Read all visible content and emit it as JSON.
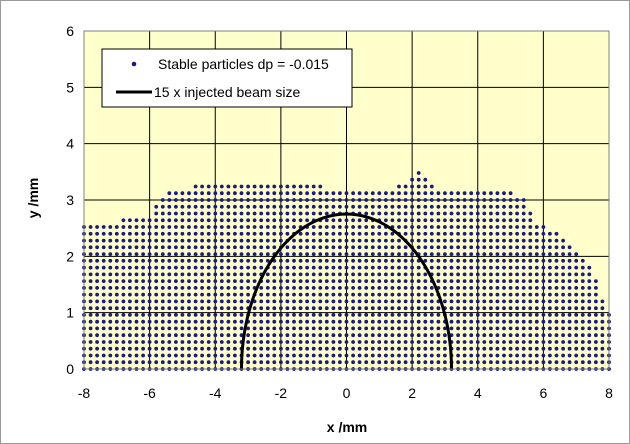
{
  "chart_data": {
    "type": "scatter",
    "xlabel": "x /mm",
    "ylabel": "y /mm",
    "xlim": [
      -8,
      8
    ],
    "ylim": [
      0,
      6
    ],
    "xticks": [
      -8,
      -6,
      -4,
      -2,
      0,
      2,
      4,
      6,
      8
    ],
    "yticks": [
      0,
      1,
      2,
      3,
      4,
      5,
      6
    ],
    "grid": true,
    "legend_position": "top-left",
    "plot_background": "#ffffcc",
    "series": [
      {
        "name": "Stable particles dp = -0.015",
        "kind": "points",
        "color": "#1a1a80",
        "grid_step": {
          "x": 0.2,
          "y": 0.12
        },
        "boundary": [
          [
            -8.0,
            2.6
          ],
          [
            -7.4,
            2.6
          ],
          [
            -7.0,
            2.6
          ],
          [
            -6.6,
            2.7
          ],
          [
            -6.0,
            2.75
          ],
          [
            -5.4,
            3.2
          ],
          [
            -4.6,
            3.25
          ],
          [
            -4.0,
            3.35
          ],
          [
            -3.0,
            3.35
          ],
          [
            -2.0,
            3.35
          ],
          [
            -1.0,
            3.25
          ],
          [
            0.0,
            3.2
          ],
          [
            1.0,
            3.2
          ],
          [
            1.6,
            3.25
          ],
          [
            2.2,
            3.5
          ],
          [
            2.8,
            3.2
          ],
          [
            3.6,
            3.2
          ],
          [
            4.4,
            3.2
          ],
          [
            5.0,
            3.2
          ],
          [
            5.4,
            3.0
          ],
          [
            5.8,
            2.6
          ],
          [
            6.2,
            2.5
          ],
          [
            6.6,
            2.3
          ],
          [
            7.2,
            2.0
          ],
          [
            7.6,
            1.6
          ],
          [
            7.8,
            1.3
          ],
          [
            8.0,
            1.0
          ]
        ]
      },
      {
        "name": "15 x injected beam size",
        "kind": "line",
        "color": "#000000",
        "shape": "half-ellipse",
        "x_semi_axis": 3.2,
        "y_semi_axis": 2.75
      }
    ]
  }
}
